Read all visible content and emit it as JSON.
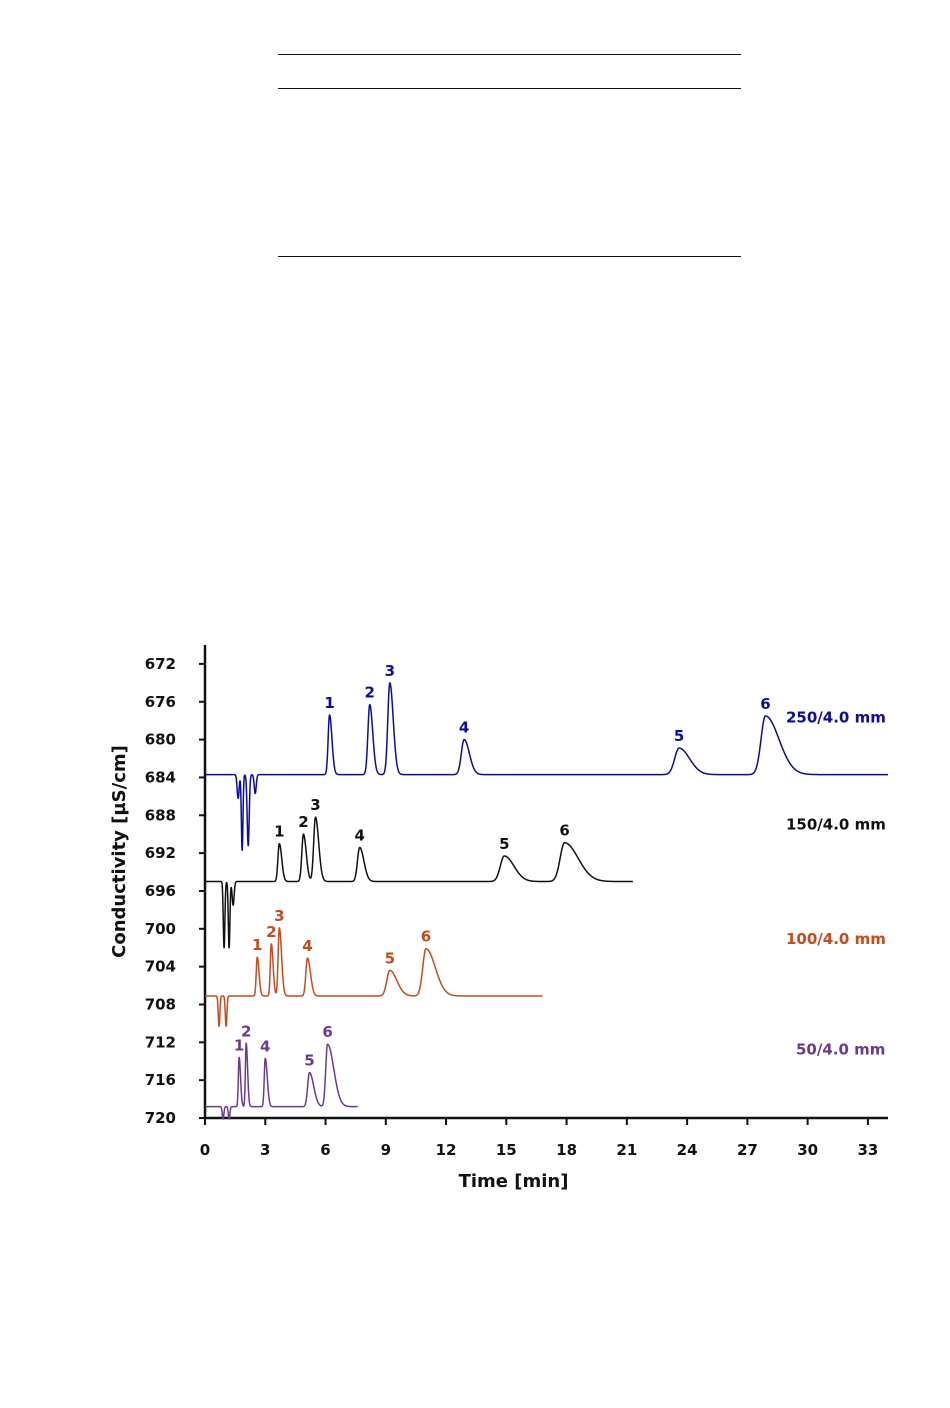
{
  "chart_data": {
    "type": "line",
    "title": "",
    "xlabel": "Time [min]",
    "ylabel": "Conductivity [µS/cm]",
    "xlim": [
      0,
      34
    ],
    "ylim": [
      720,
      670
    ],
    "y_axis_inverted": true,
    "x_ticks": [
      0,
      3,
      6,
      9,
      12,
      15,
      18,
      21,
      24,
      27,
      30,
      33
    ],
    "y_ticks": [
      672,
      676,
      680,
      684,
      688,
      692,
      696,
      700,
      704,
      708,
      712,
      716,
      720
    ],
    "grid": false,
    "series": [
      {
        "name": "250/4.0 mm",
        "color": "#0b0ba8",
        "baseline": 683.7,
        "end_time": 34,
        "dips": [
          {
            "t": 1.65,
            "depth": 2.5,
            "width": 0.05
          },
          {
            "t": 1.85,
            "depth": 8.0,
            "width": 0.04
          },
          {
            "t": 2.15,
            "depth": 7.5,
            "width": 0.05
          },
          {
            "t": 2.5,
            "depth": 2.0,
            "width": 0.05
          }
        ],
        "peaks": [
          {
            "label": "1",
            "time": 6.2,
            "apex": 677.4,
            "sigma": 0.07,
            "tail": 0.05
          },
          {
            "label": "2",
            "time": 8.2,
            "apex": 676.3,
            "sigma": 0.09,
            "tail": 0.06
          },
          {
            "label": "3",
            "time": 9.2,
            "apex": 674.0,
            "sigma": 0.1,
            "tail": 0.07
          },
          {
            "label": "4",
            "time": 12.9,
            "apex": 680.0,
            "sigma": 0.14,
            "tail": 0.12
          },
          {
            "label": "5",
            "time": 23.6,
            "apex": 680.9,
            "sigma": 0.22,
            "tail": 0.3
          },
          {
            "label": "6",
            "time": 27.9,
            "apex": 677.5,
            "sigma": 0.22,
            "tail": 0.45
          }
        ]
      },
      {
        "name": "150/4.0 mm",
        "color": "#111111",
        "baseline": 695.0,
        "end_time": 21.3,
        "dips": [
          {
            "t": 0.95,
            "depth": 7.0,
            "width": 0.04
          },
          {
            "t": 1.2,
            "depth": 7.0,
            "width": 0.04
          },
          {
            "t": 1.4,
            "depth": 2.5,
            "width": 0.05
          }
        ],
        "peaks": [
          {
            "label": "1",
            "time": 3.7,
            "apex": 691.0,
            "sigma": 0.07,
            "tail": 0.05
          },
          {
            "label": "2",
            "time": 4.9,
            "apex": 690.0,
            "sigma": 0.08,
            "tail": 0.06
          },
          {
            "label": "3",
            "time": 5.5,
            "apex": 688.2,
            "sigma": 0.09,
            "tail": 0.07
          },
          {
            "label": "4",
            "time": 7.7,
            "apex": 691.4,
            "sigma": 0.11,
            "tail": 0.1
          },
          {
            "label": "5",
            "time": 14.9,
            "apex": 692.3,
            "sigma": 0.2,
            "tail": 0.28
          },
          {
            "label": "6",
            "time": 17.9,
            "apex": 690.9,
            "sigma": 0.22,
            "tail": 0.45
          }
        ]
      },
      {
        "name": "100/4.0 mm",
        "color": "#cc4a1a",
        "baseline": 707.1,
        "end_time": 16.8,
        "dips": [
          {
            "t": 0.7,
            "depth": 3.2,
            "width": 0.04
          },
          {
            "t": 1.05,
            "depth": 3.2,
            "width": 0.04
          }
        ],
        "peaks": [
          {
            "label": "1",
            "time": 2.6,
            "apex": 703.0,
            "sigma": 0.05,
            "tail": 0.04
          },
          {
            "label": "2",
            "time": 3.3,
            "apex": 701.6,
            "sigma": 0.05,
            "tail": 0.04
          },
          {
            "label": "3",
            "time": 3.7,
            "apex": 699.9,
            "sigma": 0.06,
            "tail": 0.05
          },
          {
            "label": "4",
            "time": 5.1,
            "apex": 703.1,
            "sigma": 0.08,
            "tail": 0.07
          },
          {
            "label": "5",
            "time": 9.2,
            "apex": 704.4,
            "sigma": 0.15,
            "tail": 0.2
          },
          {
            "label": "6",
            "time": 11.0,
            "apex": 702.1,
            "sigma": 0.16,
            "tail": 0.3
          }
        ]
      },
      {
        "name": "50/4.0 mm",
        "color": "#6a3a96",
        "baseline": 718.8,
        "end_time": 7.6,
        "dips": [
          {
            "t": 0.9,
            "depth": 1.3,
            "width": 0.04
          },
          {
            "t": 1.2,
            "depth": 1.3,
            "width": 0.04
          }
        ],
        "peaks": [
          {
            "label": "1",
            "time": 1.7,
            "apex": 713.6,
            "sigma": 0.04,
            "tail": 0.03
          },
          {
            "label": "2",
            "time": 2.05,
            "apex": 712.1,
            "sigma": 0.04,
            "tail": 0.03
          },
          {
            "label": "4",
            "time": 3.0,
            "apex": 713.7,
            "sigma": 0.05,
            "tail": 0.05
          },
          {
            "label": "5",
            "time": 5.2,
            "apex": 715.2,
            "sigma": 0.09,
            "tail": 0.12
          },
          {
            "label": "6",
            "time": 6.1,
            "apex": 712.2,
            "sigma": 0.09,
            "tail": 0.22
          }
        ]
      }
    ]
  }
}
